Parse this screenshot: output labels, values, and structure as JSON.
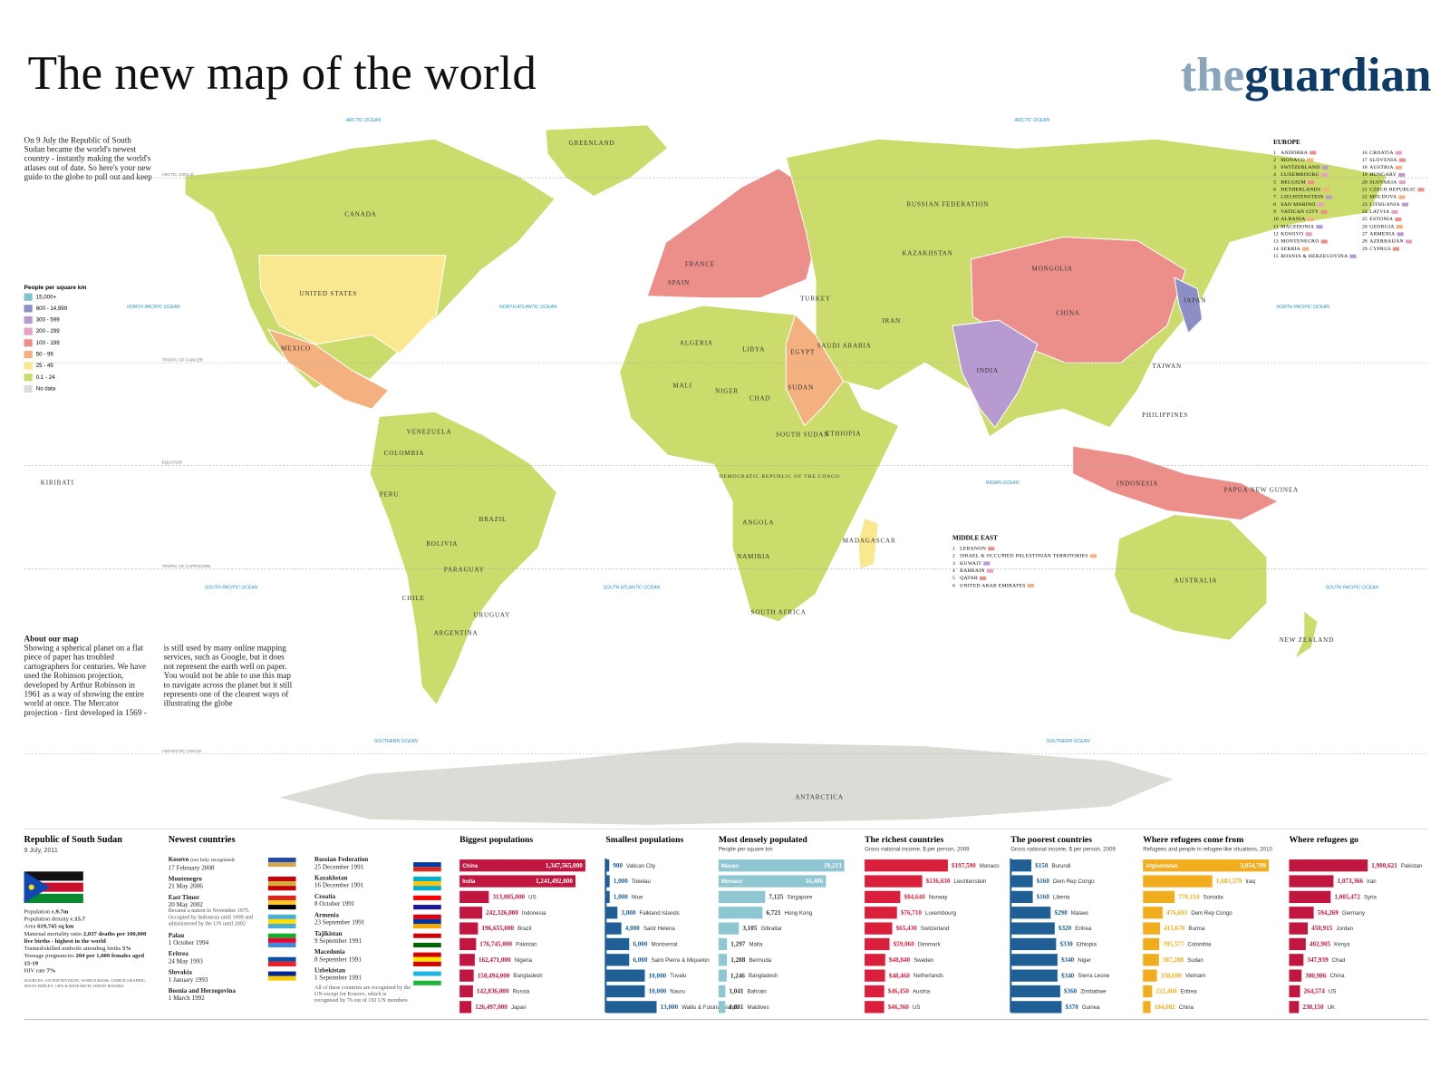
{
  "header": {
    "title": "The new map of the world",
    "brand_prefix": "the",
    "brand_name": "guardian"
  },
  "intro": "On 9 July the Republic of South Sudan became the world's newest country - instantly making the world's atlases out of date. So here's your new guide to the globe to pull out and keep",
  "legend": {
    "title": "People per square km",
    "items": [
      {
        "label": "15,000+",
        "color": "#7fc4cf"
      },
      {
        "label": "600 - 14,999",
        "color": "#8c8fc4"
      },
      {
        "label": "300 - 599",
        "color": "#b69ad0"
      },
      {
        "label": "200 - 299",
        "color": "#e6a2c6"
      },
      {
        "label": "100 - 199",
        "color": "#ec8f8a"
      },
      {
        "label": "50 - 99",
        "color": "#f4b07e"
      },
      {
        "label": "25 - 49",
        "color": "#f9e88f"
      },
      {
        "label": "0.1 - 24",
        "color": "#cbdc6c"
      },
      {
        "label": "No data",
        "color": "#dcdcd6"
      }
    ]
  },
  "map": {
    "labels": [
      "GREENLAND",
      "CANADA",
      "UNITED STATES",
      "MEXICO",
      "VENEZUELA",
      "COLOMBIA",
      "PERU",
      "BRAZIL",
      "BOLIVIA",
      "PARAGUAY",
      "CHILE",
      "URUGUAY",
      "ARGENTINA",
      "ALGERIA",
      "LIBYA",
      "EGYPT",
      "MALI",
      "NIGER",
      "CHAD",
      "SUDAN",
      "SOUTH SUDAN",
      "ETHIOPIA",
      "DEMOCRATIC REPUBLIC OF THE CONGO",
      "ANGOLA",
      "NAMIBIA",
      "SOUTH AFRICA",
      "MADAGASCAR",
      "FRANCE",
      "SPAIN",
      "TURKEY",
      "RUSSIAN FEDERATION",
      "KAZAKHSTAN",
      "MONGOLIA",
      "CHINA",
      "IRAN",
      "SAUDI ARABIA",
      "INDIA",
      "JAPAN",
      "PHILIPPINES",
      "TAIWAN",
      "INDONESIA",
      "PAPUA NEW GUINEA",
      "AUSTRALIA",
      "NEW ZEALAND",
      "KIRIBATI",
      "ANTARCTICA"
    ],
    "oceans": [
      "ARCTIC OCEAN",
      "ARCTIC OCEAN",
      "NORTH PACIFIC OCEAN",
      "NORTH ATLANTIC OCEAN",
      "NORTH PACIFIC OCEAN",
      "SOUTH PACIFIC OCEAN",
      "SOUTH ATLANTIC OCEAN",
      "INDIAN OCEAN",
      "SOUTH PACIFIC OCEAN",
      "SOUTHERN OCEAN",
      "SOUTHERN OCEAN"
    ],
    "lines": [
      "ARCTIC CIRCLE",
      "TROPIC OF CANCER",
      "EQUATOR",
      "TROPIC OF CAPRICORN",
      "ANTARCTIC CIRCLE"
    ]
  },
  "europe": {
    "title": "EUROPE",
    "items": [
      {
        "n": 1,
        "name": "ANDORRA"
      },
      {
        "n": 2,
        "name": "MONACO"
      },
      {
        "n": 3,
        "name": "SWITZERLAND"
      },
      {
        "n": 4,
        "name": "LUXEMBOURG"
      },
      {
        "n": 5,
        "name": "BELGIUM"
      },
      {
        "n": 6,
        "name": "NETHERLANDS"
      },
      {
        "n": 7,
        "name": "LIECHTENSTEIN"
      },
      {
        "n": 8,
        "name": "SAN MARINO"
      },
      {
        "n": 9,
        "name": "VATICAN CITY"
      },
      {
        "n": 10,
        "name": "ALBANIA"
      },
      {
        "n": 11,
        "name": "MACEDONIA"
      },
      {
        "n": 12,
        "name": "KOSOVO"
      },
      {
        "n": 13,
        "name": "MONTENEGRO"
      },
      {
        "n": 14,
        "name": "SERBIA"
      },
      {
        "n": 15,
        "name": "BOSNIA & HERZEGOVINA"
      },
      {
        "n": 16,
        "name": "CROATIA"
      },
      {
        "n": 17,
        "name": "SLOVENIA"
      },
      {
        "n": 18,
        "name": "AUSTRIA"
      },
      {
        "n": 19,
        "name": "HUNGARY"
      },
      {
        "n": 20,
        "name": "SLOVAKIA"
      },
      {
        "n": 21,
        "name": "CZECH REPUBLIC"
      },
      {
        "n": 22,
        "name": "MOLDOVA"
      },
      {
        "n": 23,
        "name": "LITHUANIA"
      },
      {
        "n": 24,
        "name": "LATVIA"
      },
      {
        "n": 25,
        "name": "ESTONIA"
      },
      {
        "n": 26,
        "name": "GEORGIA"
      },
      {
        "n": 27,
        "name": "ARMENIA"
      },
      {
        "n": 28,
        "name": "AZERBAIJAN"
      },
      {
        "n": 29,
        "name": "CYPRUS"
      }
    ]
  },
  "middle_east": {
    "title": "MIDDLE EAST",
    "items": [
      {
        "n": 1,
        "name": "LEBANON"
      },
      {
        "n": 2,
        "name": "ISRAEL & OCCUPIED PALESTINIAN TERRITORIES"
      },
      {
        "n": 3,
        "name": "KUWAIT"
      },
      {
        "n": 4,
        "name": "BAHRAIN"
      },
      {
        "n": 5,
        "name": "QATAR"
      },
      {
        "n": 6,
        "name": "UNITED ARAB EMIRATES"
      }
    ]
  },
  "about": {
    "title": "About our map",
    "text": "Showing a spherical planet on a flat piece of paper has troubled cartographers for centuries. We have used the Robinson projection, developed by Arthur Robinson in 1961 as a way of showing the entire world at once. The Mercator projection - first developed in 1569 - is still used by many online mapping services, such as Google, but it does not represent the earth well on paper. You would not be able to use this map to navigate across the planet but it still represents one of the clearest ways of illustrating the globe"
  },
  "south_sudan": {
    "title": "Republic of South Sudan",
    "date": "9 July, 2011",
    "facts": [
      {
        "label": "Population",
        "value": "c.9.7m"
      },
      {
        "label": "Population density",
        "value": "c.15.7"
      },
      {
        "label": "Area",
        "value": "619,745 sq km"
      },
      {
        "label": "Maternal mortality ratio",
        "value": "2,037 deaths per 100,000 live births - highest in the world"
      },
      {
        "label": "Trained/skilled midwife attending births",
        "value": "5%"
      },
      {
        "label": "Teenage pregnancies",
        "value": "204 per 1,000 females aged 15-19"
      },
      {
        "label": "HIV rate",
        "value": "7%"
      }
    ],
    "sources": "SOURCES: UN POP DIVISION, WORLD BANK, UNHCR GRAPHIC: JENNY RIDLEY, CIPS & RESEARCH: SIMON ROGERS"
  },
  "newest": {
    "title": "Newest countries",
    "countries": [
      {
        "name": "Kosovo",
        "note": "(not fully recognised)",
        "date": "17 February 2008"
      },
      {
        "name": "Montenegro",
        "date": "21 May 2006"
      },
      {
        "name": "East Timor",
        "date": "20 May 2002",
        "note": "Became a nation in November 1975. Occupied by Indonesia until 1999 and administered by the UN until 2002"
      },
      {
        "name": "Palau",
        "date": "1 October 1994"
      },
      {
        "name": "Eritrea",
        "date": "24 May 1993"
      },
      {
        "name": "Slovakia",
        "date": "1 January 1993"
      },
      {
        "name": "Bosnia and Herzegovina",
        "date": "1 March 1992"
      },
      {
        "name": "Russian Federation",
        "date": "25 December 1991"
      },
      {
        "name": "Kazakhstan",
        "date": "16 December 1991"
      },
      {
        "name": "Croatia",
        "date": "8 October 1991"
      },
      {
        "name": "Armenia",
        "date": "23 September 1991"
      },
      {
        "name": "Tajikistan",
        "date": "9 September 1991"
      },
      {
        "name": "Macedonia",
        "date": "8 September 1991"
      },
      {
        "name": "Uzbekistan",
        "date": "1 September 1991"
      }
    ],
    "footnote": "All of these countries are recognised by the UN except for Kosovo, which is recognised by 76 out of 192 UN members"
  },
  "rankings": [
    {
      "title": "Biggest populations",
      "color": "#c0163f",
      "names": [
        "China",
        "India",
        "US",
        "Indonesia",
        "Brazil",
        "Pakistan",
        "Nigeria",
        "Bangladesh",
        "Russia",
        "Japan"
      ],
      "values": [
        1347565000,
        1241492000,
        313085000,
        242326000,
        196655000,
        176745000,
        162471000,
        150494000,
        142836000,
        126497000
      ],
      "value_labels": [
        "1,347,565,000",
        "1,241,492,000",
        "313,085,000",
        "242,326,000",
        "196,655,000",
        "176,745,000",
        "162,471,000",
        "150,494,000",
        "142,836,000",
        "126,497,000"
      ]
    },
    {
      "title": "Smallest populations",
      "color": "#1f5f95",
      "names": [
        "Vatican City",
        "Tokelau",
        "Niue",
        "Falkland Islands",
        "Saint Helena",
        "Montserrat",
        "Saint Pierre & Miquelon",
        "Tuvalu",
        "Nauru",
        "Wallis & Futuna Islands"
      ],
      "values": [
        900,
        1000,
        1000,
        3000,
        4000,
        6000,
        6000,
        10000,
        10000,
        13000
      ],
      "value_labels": [
        "900",
        "1,000",
        "1,000",
        "3,000",
        "4,000",
        "6,000",
        "6,000",
        "10,000",
        "10,000",
        "13,000"
      ]
    },
    {
      "title": "Most densely populated",
      "subtitle": "People per square km",
      "color": "#8ec6d2",
      "names": [
        "Macao",
        "Monaco",
        "Singapore",
        "Hong Kong",
        "Gibraltar",
        "Malta",
        "Bermuda",
        "Bangladesh",
        "Bahrain",
        "Maldives"
      ],
      "values": [
        19213,
        16406,
        7125,
        6721,
        3105,
        1297,
        1288,
        1246,
        1041,
        1031
      ],
      "value_labels": [
        "19,213",
        "16,406",
        "7,125",
        "6,721",
        "3,105",
        "1,297",
        "1,288",
        "1,246",
        "1,041",
        "1,031"
      ]
    },
    {
      "title": "The richest countries",
      "subtitle": "Gross national income, $ per person, 2009",
      "color": "#d91f3c",
      "names": [
        "Monaco",
        "Liechtenstein",
        "Norway",
        "Luxembourg",
        "Switzerland",
        "Denmark",
        "Sweden",
        "Netherlands",
        "Austria",
        "US"
      ],
      "values": [
        197590,
        136630,
        84640,
        76710,
        65430,
        59060,
        48840,
        48460,
        46450,
        46360
      ],
      "value_labels": [
        "$197,590",
        "$136,630",
        "$84,640",
        "$76,710",
        "$65,430",
        "$59,060",
        "$48,840",
        "$48,460",
        "$46,450",
        "$46,360"
      ]
    },
    {
      "title": "The poorest countries",
      "subtitle": "Gross national income, $ per person, 2009",
      "color": "#1f5f95",
      "names": [
        "Burundi",
        "Dem Rep Congo",
        "Liberia",
        "Malawi",
        "Eritrea",
        "Ethiopia",
        "Niger",
        "Sierra Leone",
        "Zimbabwe",
        "Guinea"
      ],
      "values": [
        150,
        160,
        160,
        290,
        320,
        330,
        340,
        340,
        360,
        370
      ],
      "value_labels": [
        "$150",
        "$160",
        "$160",
        "$290",
        "$320",
        "$330",
        "$340",
        "$340",
        "$360",
        "$370"
      ]
    },
    {
      "title": "Where refugees come from",
      "subtitle": "Refugees and people in refugee-like situations, 2010",
      "color": "#f2ad1f",
      "names": [
        "Afghanistan",
        "Iraq",
        "Somalia",
        "Dem Rep Congo",
        "Burma",
        "Colombia",
        "Sudan",
        "Vietnam",
        "Eritrea",
        "China"
      ],
      "values": [
        3054709,
        1683579,
        770154,
        476693,
        415670,
        395577,
        387288,
        338698,
        222460,
        184602
      ],
      "value_labels": [
        "3,054,709",
        "1,683,579",
        "770,154",
        "476,693",
        "415,670",
        "395,577",
        "387,288",
        "338,698",
        "222,460",
        "184,602"
      ]
    },
    {
      "title": "Where refugees go",
      "color": "#c0163f",
      "names": [
        "Pakistan",
        "Iran",
        "Syria",
        "Germany",
        "Jordan",
        "Kenya",
        "Chad",
        "China",
        "US",
        "UK"
      ],
      "values": [
        1900621,
        1073366,
        1005472,
        594269,
        450915,
        402905,
        347939,
        300986,
        264574,
        238150
      ],
      "value_labels": [
        "1,900,621",
        "1,073,366",
        "1,005,472",
        "594,269",
        "450,915",
        "402,905",
        "347,939",
        "300,986",
        "264,574",
        "238,150"
      ]
    }
  ]
}
